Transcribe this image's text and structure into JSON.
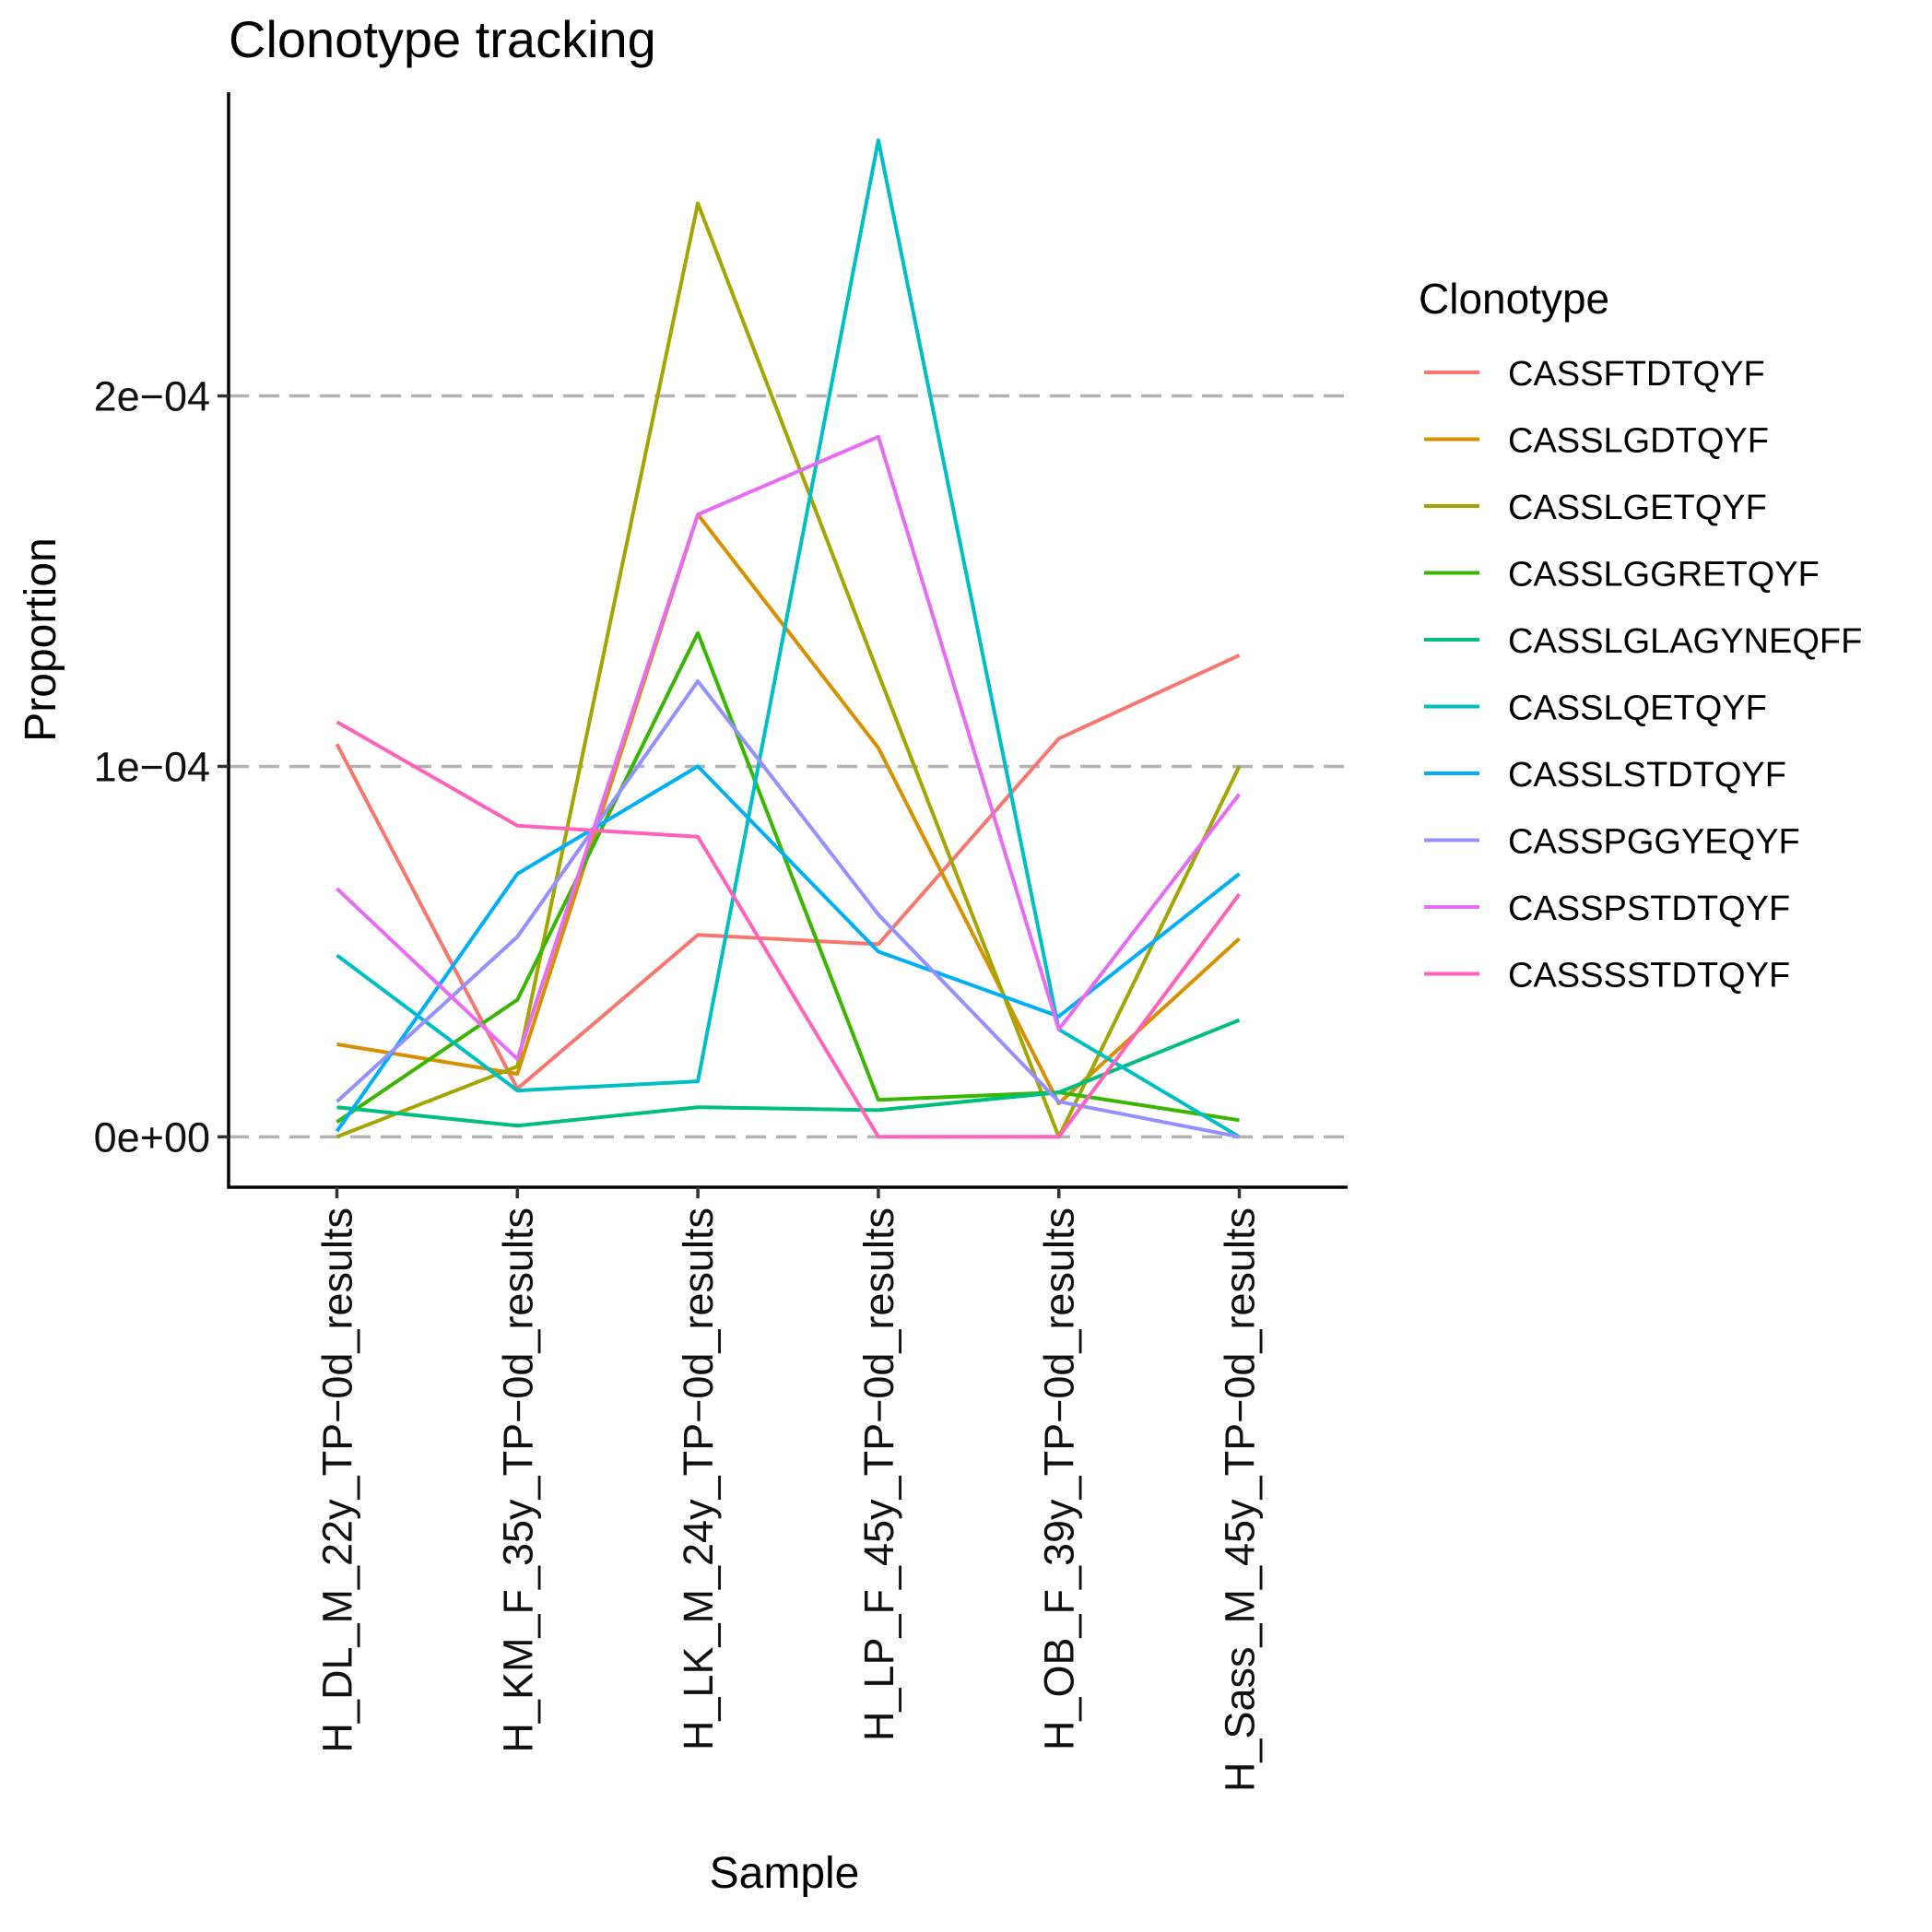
{
  "chart_data": {
    "type": "line",
    "title": "Clonotype tracking",
    "xlabel": "Sample",
    "ylabel": "Proportion",
    "categories": [
      "H_DL_M_22y_TP-0d_results",
      "H_KM_F_35y_TP-0d_results",
      "H_LK_M_24y_TP-0d_results",
      "H_LP_F_45y_TP-0d_results",
      "H_OB_F_39y_TP-0d_results",
      "H_Sass_M_45y_TP-0d_results"
    ],
    "category_labels": [
      "H_DL_M_22y_TP−0d_results",
      "H_KM_F_35y_TP−0d_results",
      "H_LK_M_24y_TP−0d_results",
      "H_LP_F_45y_TP−0d_results",
      "H_OB_F_39y_TP−0d_results",
      "H_Sass_M_45y_TP−0d_results"
    ],
    "ylim": [
      -1.36e-05,
      0.000282
    ],
    "yticks": [
      0,
      0.0001,
      0.0002
    ],
    "ytick_labels": [
      "0e+00",
      "1e−04",
      "2e−04"
    ],
    "grid": "horizontal dashed",
    "legend_title": "Clonotype",
    "legend_position": "right",
    "series": [
      {
        "name": "CASSFTDTQYF",
        "color": "#F8766D",
        "values": [
          0.000106,
          1.3e-05,
          5.45e-05,
          5.2e-05,
          0.0001075,
          0.00013
        ]
      },
      {
        "name": "CASSLGDTQYF",
        "color": "#D89000",
        "values": [
          2.5e-05,
          1.7e-05,
          0.000168,
          0.000105,
          9e-06,
          5.35e-05
        ]
      },
      {
        "name": "CASSLGETQYF",
        "color": "#A3A500",
        "values": [
          0.0,
          1.9e-05,
          0.000252,
          0.000125,
          0.0,
          0.0001
        ]
      },
      {
        "name": "CASSLGGRETQYF",
        "color": "#39B600",
        "values": [
          4e-06,
          3.7e-05,
          0.000136,
          1e-05,
          1.2e-05,
          4.5e-06
        ]
      },
      {
        "name": "CASSLGLAGYNEQFF",
        "color": "#00BF7D",
        "values": [
          8e-06,
          3e-06,
          8e-06,
          7.2e-06,
          1.2e-05,
          3.15e-05
        ]
      },
      {
        "name": "CASSLQETQYF",
        "color": "#00BFC4",
        "values": [
          4.9e-05,
          1.25e-05,
          1.5e-05,
          0.000269,
          2.9e-05,
          0.0
        ]
      },
      {
        "name": "CASSLSTDTQYF",
        "color": "#00B0F6",
        "values": [
          1.5e-06,
          7.1e-05,
          0.0001,
          5e-05,
          3.25e-05,
          7.1e-05
        ]
      },
      {
        "name": "CASSPGGYEQYF",
        "color": "#9590FF",
        "values": [
          9.5e-06,
          5.4e-05,
          0.000123,
          6e-05,
          9.5e-06,
          0.0
        ]
      },
      {
        "name": "CASSPSTDTQYF",
        "color": "#E76BF3",
        "values": [
          6.7e-05,
          2.1e-05,
          0.000168,
          0.000189,
          2.9e-05,
          9.25e-05
        ]
      },
      {
        "name": "CASSSSTDTQYF",
        "color": "#FF62BC",
        "values": [
          0.000112,
          8.4e-05,
          8.1e-05,
          0.0,
          0.0,
          6.55e-05
        ]
      }
    ]
  }
}
